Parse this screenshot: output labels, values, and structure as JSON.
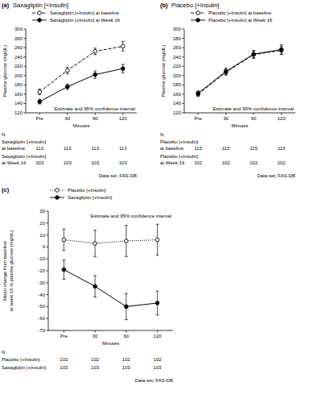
{
  "chart_data": [
    {
      "type": "line",
      "label": "(a)",
      "title": "Saxagliptin [+Insulin]",
      "categories": [
        "Pre",
        "30",
        "60",
        "120"
      ],
      "x_label": "Minutes",
      "y_label": [
        "Plasma glucose (mg/dL)"
      ],
      "ylim": [
        120,
        300
      ],
      "yticks": [
        120,
        140,
        160,
        180,
        200,
        220,
        240,
        260,
        280,
        300
      ],
      "legend": "top left",
      "series": [
        {
          "name": "Saxagliptin [+Insulin] at baseline",
          "color": "#000000",
          "marker": "open-circle",
          "line_style": "dashed",
          "values": [
            165,
            211,
            252,
            263
          ],
          "errors": [
            6,
            7,
            7,
            10
          ]
        },
        {
          "name": "Saxagliptin [+Insulin] at Week 16",
          "color": "#000000",
          "marker": "circle",
          "line_style": "solid",
          "values": [
            144,
            176,
            202,
            215
          ],
          "errors": [
            5,
            6,
            8,
            9
          ]
        }
      ],
      "annotation": "Estimate and 95% confidence interval",
      "n_table": {
        "header": "N",
        "rows": [
          {
            "label": [
              "Saxagliptin [+Insulin]",
              "at baseline"
            ],
            "values": [
              113,
              113,
              113,
              113
            ]
          },
          {
            "label": [
              "Saxagliptin [+Insulin]",
              "at Week 16"
            ],
            "values": [
              103,
              103,
              103,
              103
            ]
          }
        ]
      },
      "source": "Data set: FAS-DB"
    },
    {
      "type": "line",
      "label": "(b)",
      "title": "Placebo [+Insulin]",
      "categories": [
        "Pre",
        "30",
        "60",
        "120"
      ],
      "x_label": "Minutes",
      "y_label": [
        "Plasma glucose (mg/dL)"
      ],
      "ylim": [
        120,
        300
      ],
      "yticks": [
        120,
        140,
        160,
        180,
        200,
        220,
        240,
        260,
        280,
        300
      ],
      "legend": "top left",
      "series": [
        {
          "name": "Placebo [+Insulin] at baseline",
          "color": "#000000",
          "marker": "open-circle",
          "line_style": "dashed",
          "values": [
            160,
            207,
            245,
            254
          ],
          "errors": [
            5,
            6,
            8,
            9
          ]
        },
        {
          "name": "Placebo [+Insulin] at Week 16",
          "color": "#000000",
          "marker": "circle",
          "line_style": "solid",
          "values": [
            162,
            209,
            246,
            256
          ],
          "errors": [
            5,
            7,
            8,
            10
          ]
        }
      ],
      "annotation": "Estimate and 95% confidence interval",
      "n_table": {
        "header": "N",
        "rows": [
          {
            "label": [
              "Placebo [+Insulin]",
              "at baseline"
            ],
            "values": [
              115,
              115,
              115,
              115
            ]
          },
          {
            "label": [
              "Placebo [+Insulin]",
              "at Week 16"
            ],
            "values": [
              102,
              102,
              102,
              102
            ]
          }
        ]
      },
      "source": "Data set: FAS-DB"
    },
    {
      "type": "line",
      "label": "(c)",
      "categories": [
        "Pre",
        "30",
        "60",
        "120"
      ],
      "x_label": "Minutes",
      "y_label": [
        "Mean change from baseline",
        "at week 16 in plasma glucose (mg/dL)"
      ],
      "ylim": [
        -70,
        30
      ],
      "yticks": [
        -70,
        -60,
        -50,
        -40,
        -30,
        -20,
        -10,
        0,
        10,
        20,
        30
      ],
      "legend": "top left",
      "series": [
        {
          "name": "Placebo [+Insulin]",
          "color": "#000000",
          "marker": "open-circle",
          "line_style": "dotted",
          "values": [
            6,
            3,
            5,
            6
          ],
          "errors": [
            9,
            11,
            13,
            13
          ]
        },
        {
          "name": "Saxagliptin [+Insulin]",
          "color": "#000000",
          "marker": "circle",
          "line_style": "solid",
          "values": [
            -19,
            -33,
            -50,
            -47
          ],
          "errors": [
            8,
            9,
            11,
            10
          ]
        }
      ],
      "annotation": "Estimate and 95% confidence interval",
      "n_table": {
        "header": "N",
        "rows": [
          {
            "label": [
              "Placebo [+Insulin]"
            ],
            "values": [
              102,
              102,
              102,
              102
            ]
          },
          {
            "label": [
              "Saxagliptin [+Insulin]"
            ],
            "values": [
              103,
              103,
              103,
              103
            ]
          }
        ]
      },
      "source": "Data set: FAS-DB"
    }
  ]
}
